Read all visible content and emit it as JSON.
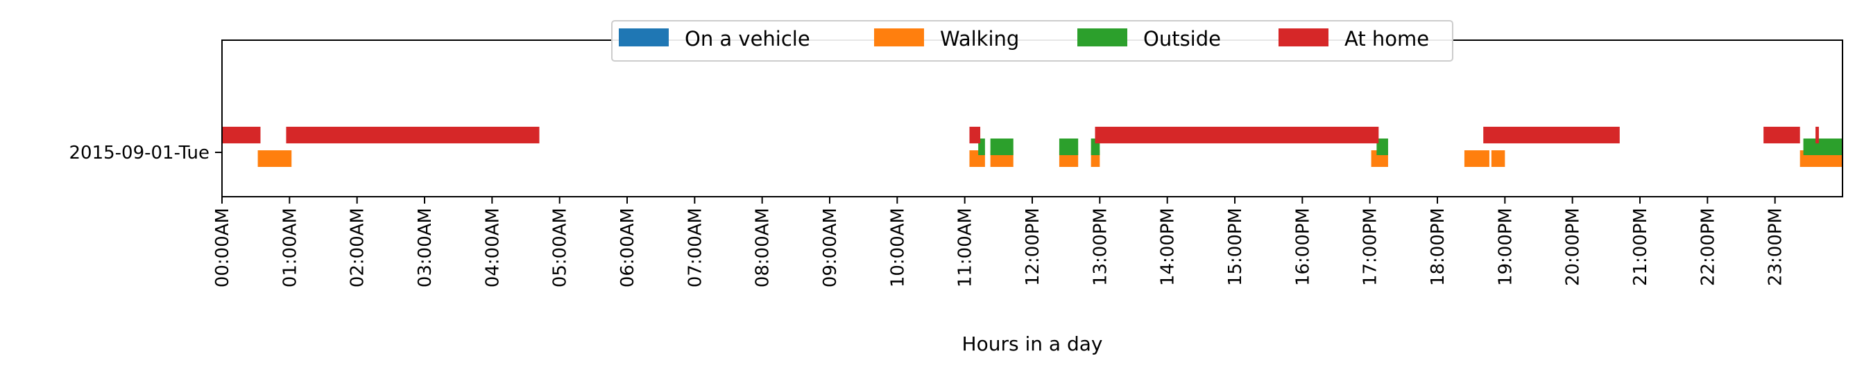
{
  "chart_data": {
    "type": "timeline",
    "row_label": "2015-09-01-Tue",
    "xlabel": "Hours in a day",
    "xlim": [
      0,
      24
    ],
    "x_ticks": [
      {
        "hour": 0,
        "label": "00:00AM"
      },
      {
        "hour": 1,
        "label": "01:00AM"
      },
      {
        "hour": 2,
        "label": "02:00AM"
      },
      {
        "hour": 3,
        "label": "03:00AM"
      },
      {
        "hour": 4,
        "label": "04:00AM"
      },
      {
        "hour": 5,
        "label": "05:00AM"
      },
      {
        "hour": 6,
        "label": "06:00AM"
      },
      {
        "hour": 7,
        "label": "07:00AM"
      },
      {
        "hour": 8,
        "label": "08:00AM"
      },
      {
        "hour": 9,
        "label": "09:00AM"
      },
      {
        "hour": 10,
        "label": "10:00AM"
      },
      {
        "hour": 11,
        "label": "11:00AM"
      },
      {
        "hour": 12,
        "label": "12:00PM"
      },
      {
        "hour": 13,
        "label": "13:00PM"
      },
      {
        "hour": 14,
        "label": "14:00PM"
      },
      {
        "hour": 15,
        "label": "15:00PM"
      },
      {
        "hour": 16,
        "label": "16:00PM"
      },
      {
        "hour": 17,
        "label": "17:00PM"
      },
      {
        "hour": 18,
        "label": "18:00PM"
      },
      {
        "hour": 19,
        "label": "19:00PM"
      },
      {
        "hour": 20,
        "label": "20:00PM"
      },
      {
        "hour": 21,
        "label": "21:00PM"
      },
      {
        "hour": 22,
        "label": "22:00PM"
      },
      {
        "hour": 23,
        "label": "23:00PM"
      }
    ],
    "legend_position": "top-center",
    "grid": false,
    "series": [
      {
        "name": "On a vehicle",
        "color": "#1f77b4",
        "segments": []
      },
      {
        "name": "Walking",
        "color": "#ff7f0e",
        "segments": [
          [
            0.53,
            1.03
          ],
          [
            11.07,
            11.3
          ],
          [
            11.38,
            11.72
          ],
          [
            12.4,
            12.68
          ],
          [
            12.87,
            13.0
          ],
          [
            17.02,
            17.27
          ],
          [
            18.4,
            18.77
          ],
          [
            18.8,
            19.0
          ],
          [
            23.37,
            24.0
          ]
        ]
      },
      {
        "name": "Outside",
        "color": "#2ca02c",
        "segments": [
          [
            11.2,
            11.3
          ],
          [
            11.38,
            11.72
          ],
          [
            12.4,
            12.68
          ],
          [
            12.87,
            13.0
          ],
          [
            17.1,
            17.27
          ],
          [
            23.42,
            24.0
          ]
        ]
      },
      {
        "name": "At home",
        "color": "#d62728",
        "segments": [
          [
            0.0,
            0.57
          ],
          [
            0.95,
            4.7
          ],
          [
            11.07,
            11.23
          ],
          [
            12.93,
            17.13
          ],
          [
            18.68,
            20.7
          ],
          [
            22.83,
            23.37
          ],
          [
            23.6,
            23.65
          ]
        ]
      }
    ]
  }
}
